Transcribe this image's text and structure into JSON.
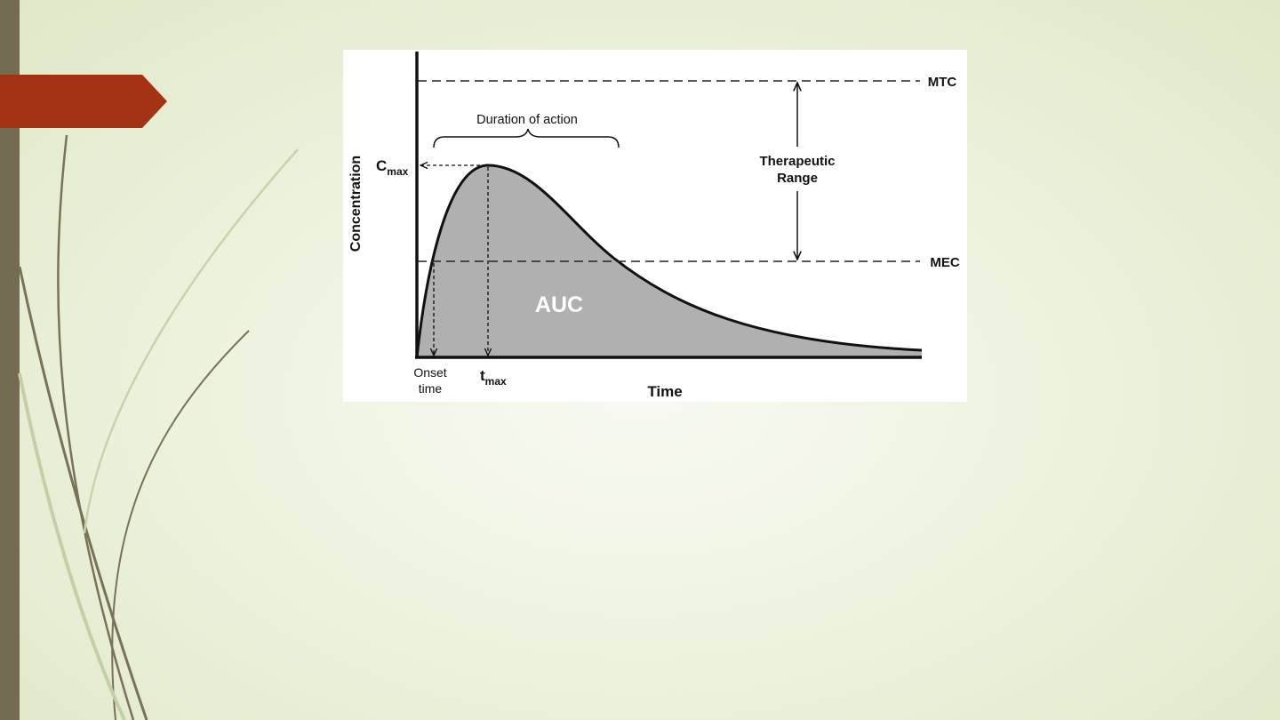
{
  "diagram": {
    "axis_y": "Concentration",
    "axis_x": "Time",
    "upper_line": "MTC",
    "lower_line": "MEC",
    "duration": "Duration of action",
    "range": [
      "Therapeutic",
      "Range"
    ],
    "area": "AUC",
    "cmax": {
      "symbol": "C",
      "subscript": "max"
    },
    "tmax": {
      "symbol": "t",
      "subscript": "max"
    },
    "onset": [
      "Onset",
      "time"
    ]
  }
}
